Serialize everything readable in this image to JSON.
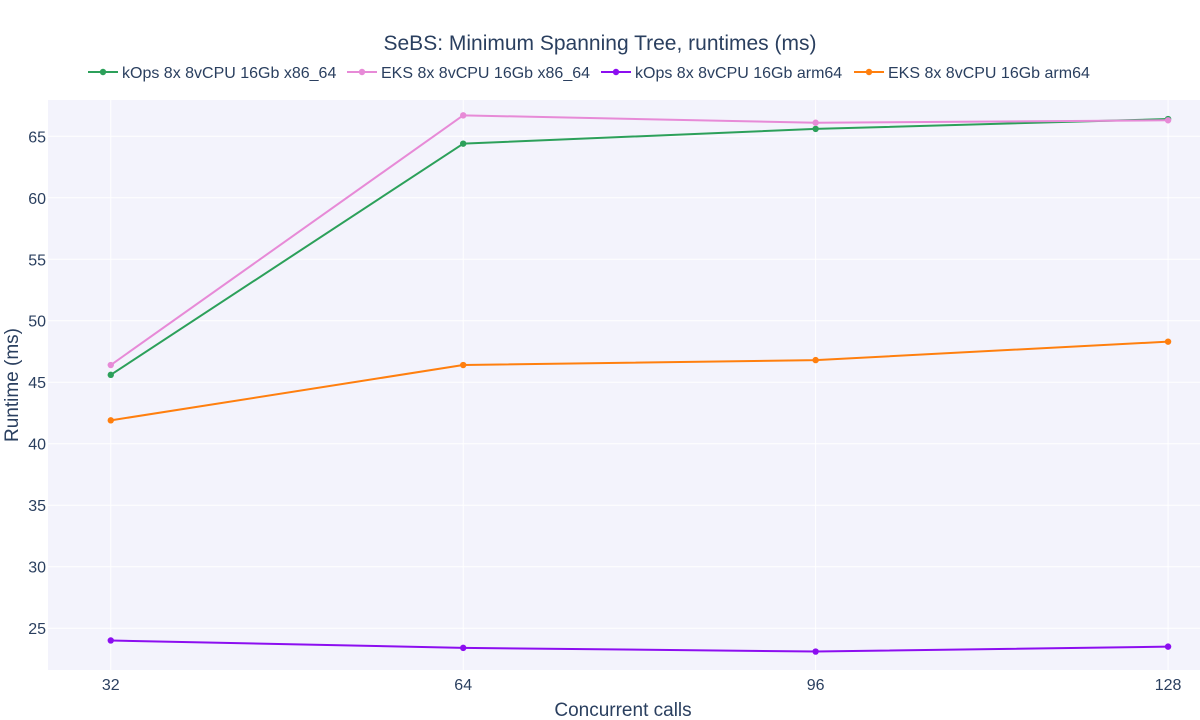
{
  "chart_data": {
    "type": "line",
    "title": "SeBS: Minimum Spanning Tree, runtimes (ms)",
    "xlabel": "Concurrent calls",
    "ylabel": "Runtime (ms)",
    "x": [
      32,
      64,
      96,
      128
    ],
    "x_ticks": [
      "32",
      "64",
      "96",
      "128"
    ],
    "y_ticks": [
      "25",
      "30",
      "35",
      "40",
      "45",
      "50",
      "55",
      "60",
      "65"
    ],
    "xlim": [
      26.3,
      130.9
    ],
    "ylim": [
      21.6,
      67.95
    ],
    "grid": true,
    "legend_position": "top",
    "plot_background": "#f3f3fc",
    "series": [
      {
        "name": "kOps 8x 8vCPU 16Gb x86_64",
        "color": "#2ca05a",
        "values": [
          45.6,
          64.4,
          65.6,
          66.4
        ]
      },
      {
        "name": "EKS 8x 8vCPU 16Gb x86_64",
        "color": "#e78ad7",
        "values": [
          46.4,
          66.7,
          66.1,
          66.3
        ]
      },
      {
        "name": "kOps 8x 8vCPU 16Gb arm64",
        "color": "#8c0ef0",
        "values": [
          24.0,
          23.4,
          23.1,
          23.5
        ]
      },
      {
        "name": "EKS 8x 8vCPU 16Gb arm64",
        "color": "#ff7f0e",
        "values": [
          41.9,
          46.4,
          46.8,
          48.3
        ]
      }
    ]
  }
}
